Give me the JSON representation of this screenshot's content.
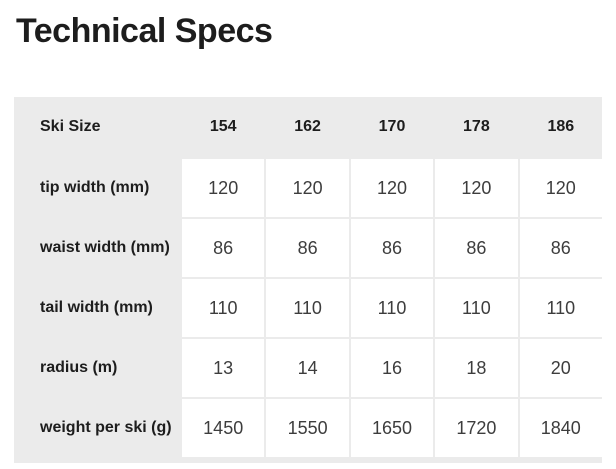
{
  "title": "Technical Specs",
  "table": {
    "header": {
      "label": "Ski Size",
      "sizes": [
        "154",
        "162",
        "170",
        "178",
        "186"
      ]
    },
    "rows": [
      {
        "label": "tip width (mm)",
        "values": [
          "120",
          "120",
          "120",
          "120",
          "120"
        ]
      },
      {
        "label": "waist width (mm)",
        "values": [
          "86",
          "86",
          "86",
          "86",
          "86"
        ]
      },
      {
        "label": "tail width (mm)",
        "values": [
          "110",
          "110",
          "110",
          "110",
          "110"
        ]
      },
      {
        "label": "radius (m)",
        "values": [
          "13",
          "14",
          "16",
          "18",
          "20"
        ]
      },
      {
        "label": "weight per ski (g)",
        "values": [
          "1450",
          "1550",
          "1650",
          "1720",
          "1840"
        ]
      }
    ]
  },
  "colors": {
    "table_background": "#ebebeb",
    "cell_background": "#ffffff",
    "heading_text": "#1d1d1d",
    "value_text": "#3d3d3d"
  }
}
